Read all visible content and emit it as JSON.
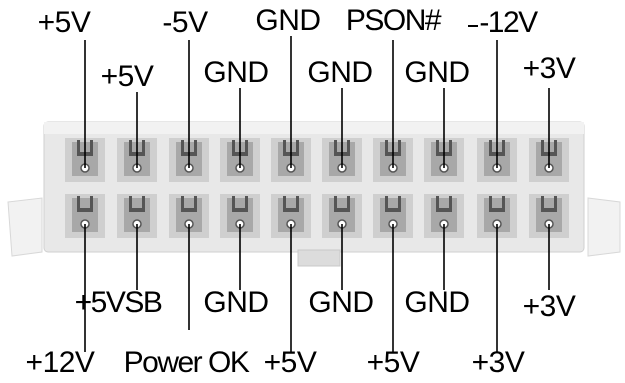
{
  "connector": {
    "top_row_labels": [
      "+5V",
      "+5V",
      "-5V",
      "GND",
      "GND",
      "GND",
      "PSON#",
      "GND",
      "-12V",
      "+3V"
    ],
    "bottom_row_labels": [
      "+12V",
      "+5VSB",
      "Power OK",
      "GND",
      "+5V",
      "GND",
      "+5V",
      "GND",
      "+3V",
      "+3V"
    ],
    "colors": {
      "body": "#e6e6e6",
      "pin_housing": "#a8a8a8",
      "pin_dark": "#555555",
      "side_latch": "#f0f0f0",
      "lines": "#000000"
    }
  }
}
